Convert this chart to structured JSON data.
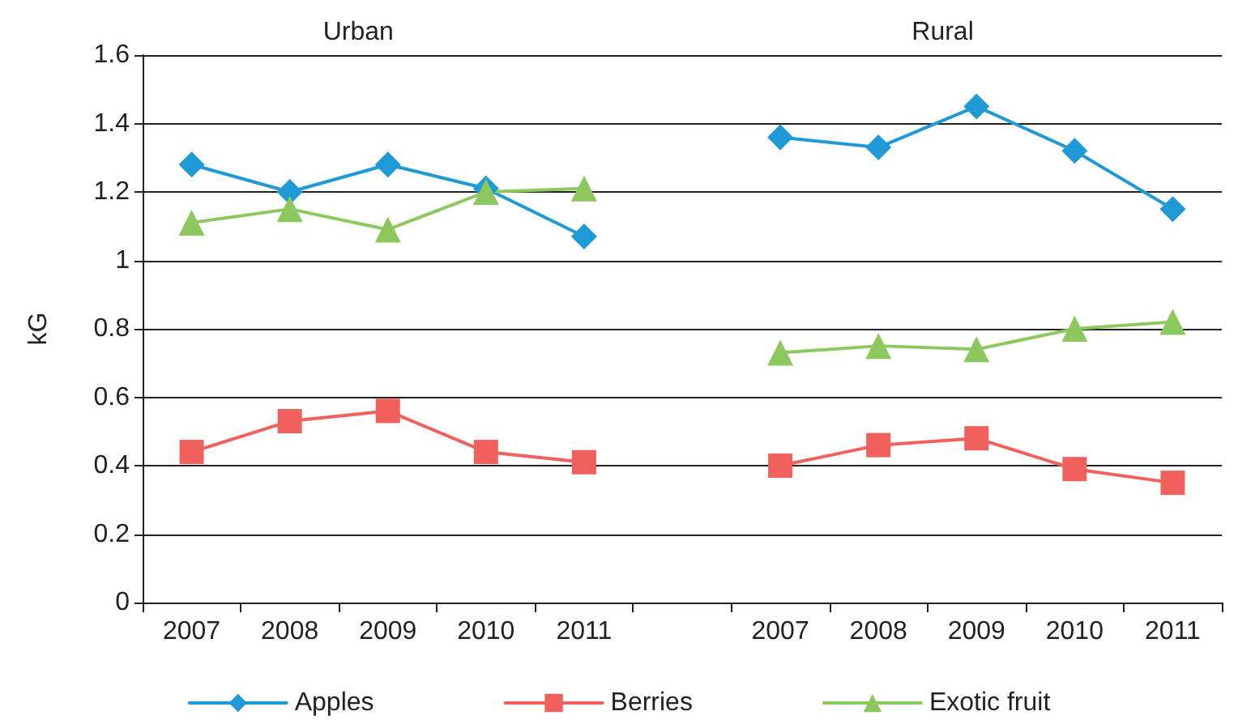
{
  "chart_data": {
    "type": "line",
    "ylabel": "kG",
    "annotations": [
      "Urban",
      "Rural"
    ],
    "categories": [
      "2007",
      "2008",
      "2009",
      "2010",
      "2011",
      null,
      "2007",
      "2008",
      "2009",
      "2010",
      "2011"
    ],
    "series": [
      {
        "name": "Apples",
        "color": "#1f9ad6",
        "marker": "diamond",
        "values": [
          1.28,
          1.2,
          1.28,
          1.21,
          1.07,
          null,
          1.36,
          1.33,
          1.45,
          1.32,
          1.15
        ]
      },
      {
        "name": "Berries",
        "color": "#f0605d",
        "marker": "square",
        "values": [
          0.44,
          0.53,
          0.56,
          0.44,
          0.41,
          null,
          0.4,
          0.46,
          0.48,
          0.39,
          0.35
        ]
      },
      {
        "name": "Exotic fruit",
        "color": "#8dc85f",
        "marker": "triangle",
        "values": [
          1.11,
          1.15,
          1.09,
          1.2,
          1.21,
          null,
          0.73,
          0.75,
          0.74,
          0.8,
          0.82
        ]
      }
    ],
    "ylim": [
      0,
      1.6
    ],
    "yticks": [
      0,
      0.2,
      0.4,
      0.6,
      0.8,
      1,
      1.2,
      1.4,
      1.6
    ],
    "grid": "y",
    "legend": "bottom",
    "line_style": "solid"
  }
}
